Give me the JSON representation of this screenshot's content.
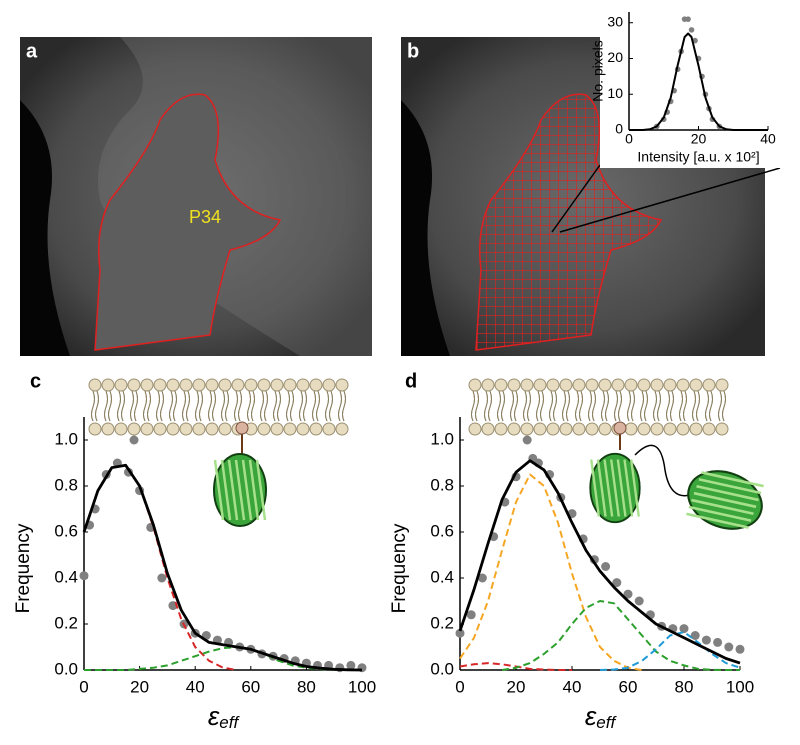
{
  "panel_labels": [
    "a",
    "b",
    "c",
    "d"
  ],
  "roi_label": "P34",
  "chart_data": [
    {
      "type": "scatter-fit",
      "ylabel": "No. pixels",
      "xlabel": "Intensity [a.u. x 10²]",
      "xlim": [
        0,
        40
      ],
      "xticks": [
        0,
        20,
        40
      ],
      "ylim": [
        0,
        33
      ],
      "yticks": [
        0,
        10,
        20,
        30
      ],
      "series": [
        {
          "kind": "scatter",
          "color": "#808080",
          "x": [
            8,
            10,
            11,
            12,
            13,
            14,
            15,
            16,
            17,
            18,
            19,
            20,
            21,
            22,
            23,
            24,
            26
          ],
          "values": [
            1,
            3,
            5,
            8,
            11,
            17,
            22,
            31,
            31,
            28,
            25,
            20,
            15,
            10,
            6,
            3,
            1
          ]
        },
        {
          "kind": "line",
          "color": "#000000",
          "dash": false,
          "x": [
            0,
            2,
            4,
            6,
            8,
            10,
            12,
            14,
            16,
            17,
            18,
            20,
            22,
            24,
            26,
            28,
            30,
            32,
            34,
            36,
            38,
            40
          ],
          "values": [
            0,
            0,
            0,
            0.2,
            1,
            3.5,
            9,
            18,
            26,
            27,
            26,
            18,
            9,
            3.5,
            1,
            0.2,
            0,
            0,
            0,
            0,
            0,
            0
          ]
        }
      ]
    },
    {
      "type": "scatter-fit",
      "ylabel": "Frequency",
      "xlabel": "ε",
      "xlabel_sub": "eff",
      "xlim": [
        0,
        100
      ],
      "xticks": [
        0,
        20,
        40,
        60,
        80,
        100
      ],
      "ylim": [
        0,
        1.1
      ],
      "yticks": [
        {
          "value": 0,
          "label": "0.0"
        },
        0.2,
        0.4,
        0.6,
        0.8,
        {
          "value": 1,
          "label": "1.0"
        }
      ],
      "series": [
        {
          "kind": "scatter",
          "color": "#808080",
          "x": [
            0,
            2,
            4,
            8,
            12,
            16,
            18,
            20,
            24,
            28,
            32,
            36,
            40,
            44,
            48,
            52,
            56,
            60,
            64,
            68,
            72,
            76,
            80,
            84,
            88,
            92,
            96,
            100
          ],
          "values": [
            0.41,
            0.63,
            0.7,
            0.85,
            0.9,
            0.86,
            1.0,
            0.78,
            0.62,
            0.4,
            0.28,
            0.2,
            0.16,
            0.15,
            0.13,
            0.12,
            0.1,
            0.09,
            0.07,
            0.06,
            0.05,
            0.04,
            0.03,
            0.02,
            0.02,
            0.01,
            0.02,
            0.01
          ]
        },
        {
          "kind": "line",
          "color": "#d62728",
          "dash": true,
          "x": [
            0,
            5,
            10,
            15,
            20,
            25,
            30,
            35,
            40,
            45,
            50,
            55
          ],
          "values": [
            0.6,
            0.78,
            0.88,
            0.89,
            0.8,
            0.62,
            0.4,
            0.22,
            0.1,
            0.04,
            0.01,
            0
          ]
        },
        {
          "kind": "line",
          "color": "#2ca02c",
          "dash": true,
          "x": [
            0,
            5,
            10,
            15,
            20,
            25,
            30,
            35,
            40,
            45,
            50,
            55,
            60,
            65,
            70,
            75,
            80,
            85,
            90,
            95,
            100
          ],
          "values": [
            0,
            0,
            0,
            0,
            0.005,
            0.01,
            0.02,
            0.04,
            0.06,
            0.08,
            0.095,
            0.1,
            0.09,
            0.07,
            0.04,
            0.02,
            0.01,
            0.004,
            0.001,
            0,
            0
          ]
        },
        {
          "kind": "line",
          "color": "#000000",
          "dash": false,
          "x": [
            0,
            5,
            10,
            15,
            20,
            25,
            30,
            35,
            40,
            45,
            50,
            55,
            60,
            65,
            70,
            75,
            80,
            85,
            90,
            95,
            100
          ],
          "values": [
            0.6,
            0.78,
            0.88,
            0.89,
            0.8,
            0.63,
            0.42,
            0.26,
            0.16,
            0.12,
            0.11,
            0.1,
            0.09,
            0.07,
            0.05,
            0.03,
            0.015,
            0.008,
            0.003,
            0.001,
            0
          ]
        }
      ]
    },
    {
      "type": "scatter-fit",
      "ylabel": "Frequency",
      "xlabel": "ε",
      "xlabel_sub": "eff",
      "xlim": [
        0,
        100
      ],
      "xticks": [
        0,
        20,
        40,
        60,
        80,
        100
      ],
      "ylim": [
        0,
        1.1
      ],
      "yticks": [
        {
          "value": 0,
          "label": "0.0"
        },
        0.2,
        0.4,
        0.6,
        0.8,
        {
          "value": 1,
          "label": "1.0"
        }
      ],
      "series": [
        {
          "kind": "scatter",
          "color": "#808080",
          "x": [
            0,
            4,
            8,
            12,
            16,
            20,
            24,
            26,
            28,
            32,
            36,
            40,
            44,
            48,
            52,
            56,
            60,
            64,
            68,
            72,
            76,
            80,
            84,
            88,
            92,
            96,
            100
          ],
          "values": [
            0.16,
            0.24,
            0.4,
            0.58,
            0.73,
            0.84,
            1.0,
            0.92,
            0.9,
            0.85,
            0.75,
            0.68,
            0.57,
            0.48,
            0.45,
            0.38,
            0.33,
            0.3,
            0.24,
            0.19,
            0.18,
            0.18,
            0.15,
            0.13,
            0.12,
            0.1,
            0.09
          ]
        },
        {
          "kind": "line",
          "color": "#d62728",
          "dash": true,
          "x": [
            0,
            5,
            10,
            15,
            20,
            25,
            30,
            35,
            40
          ],
          "values": [
            0.015,
            0.025,
            0.03,
            0.025,
            0.015,
            0.005,
            0.002,
            0,
            0
          ]
        },
        {
          "kind": "line",
          "color": "#f5a623",
          "dash": true,
          "x": [
            0,
            5,
            10,
            15,
            20,
            25,
            30,
            35,
            40,
            45,
            50,
            55,
            60,
            65
          ],
          "values": [
            0.05,
            0.14,
            0.3,
            0.52,
            0.73,
            0.85,
            0.8,
            0.64,
            0.42,
            0.23,
            0.1,
            0.04,
            0.01,
            0
          ]
        },
        {
          "kind": "line",
          "color": "#2ca02c",
          "dash": true,
          "x": [
            15,
            20,
            25,
            30,
            35,
            40,
            45,
            50,
            55,
            60,
            65,
            70,
            75,
            80,
            85,
            90,
            95,
            100
          ],
          "values": [
            0,
            0.01,
            0.03,
            0.07,
            0.12,
            0.2,
            0.27,
            0.3,
            0.29,
            0.22,
            0.15,
            0.08,
            0.04,
            0.02,
            0.005,
            0.001,
            0,
            0
          ]
        },
        {
          "kind": "line",
          "color": "#1f9ad6",
          "dash": true,
          "x": [
            50,
            55,
            60,
            65,
            70,
            75,
            80,
            85,
            90,
            95,
            100
          ],
          "values": [
            0,
            0.002,
            0.01,
            0.04,
            0.09,
            0.15,
            0.165,
            0.12,
            0.07,
            0.03,
            0.01
          ]
        },
        {
          "kind": "line",
          "color": "#000000",
          "dash": false,
          "x": [
            0,
            5,
            10,
            15,
            20,
            25,
            30,
            35,
            40,
            45,
            50,
            55,
            60,
            65,
            70,
            75,
            80,
            85,
            90,
            95,
            100
          ],
          "values": [
            0.17,
            0.35,
            0.55,
            0.74,
            0.86,
            0.91,
            0.87,
            0.77,
            0.64,
            0.52,
            0.43,
            0.36,
            0.3,
            0.25,
            0.2,
            0.17,
            0.14,
            0.11,
            0.08,
            0.05,
            0.03
          ]
        }
      ]
    }
  ]
}
